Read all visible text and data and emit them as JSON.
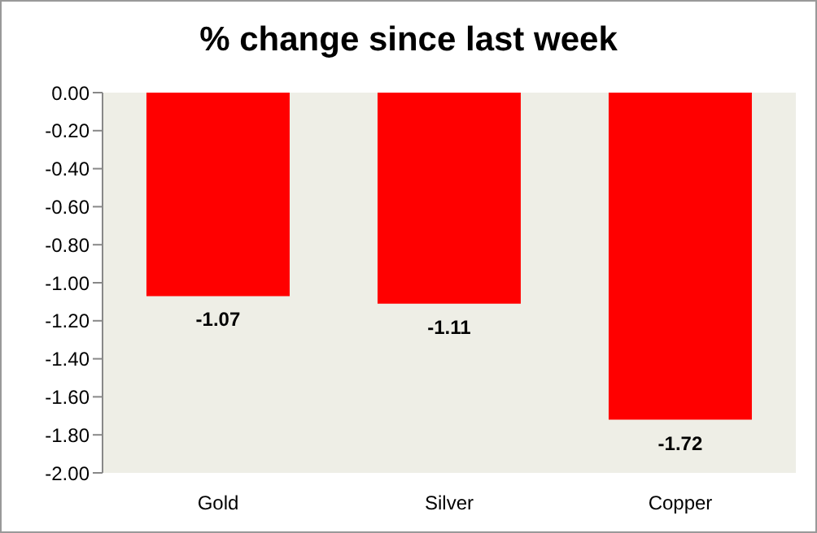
{
  "chart_data": {
    "type": "bar",
    "title": "% change since last week",
    "categories": [
      "Gold",
      "Silver",
      "Copper"
    ],
    "values": [
      -1.07,
      -1.11,
      -1.72
    ],
    "color": "#ff0000",
    "ylim": [
      -2,
      0
    ],
    "yticks": [
      {
        "value": 0,
        "label": "0.00"
      },
      {
        "value": -0.2,
        "label": "-0.20"
      },
      {
        "value": -0.4,
        "label": "-0.40"
      },
      {
        "value": -0.6,
        "label": "-0.60"
      },
      {
        "value": -0.8,
        "label": "-0.80"
      },
      {
        "value": -1,
        "label": "-1.00"
      },
      {
        "value": -1.2,
        "label": "-1.20"
      },
      {
        "value": -1.4,
        "label": "-1.40"
      },
      {
        "value": -1.6,
        "label": "-1.60"
      },
      {
        "value": -1.8,
        "label": "-1.80"
      },
      {
        "value": -2,
        "label": "-2.00"
      }
    ],
    "data_labels": true,
    "grid": false,
    "legend": false
  }
}
